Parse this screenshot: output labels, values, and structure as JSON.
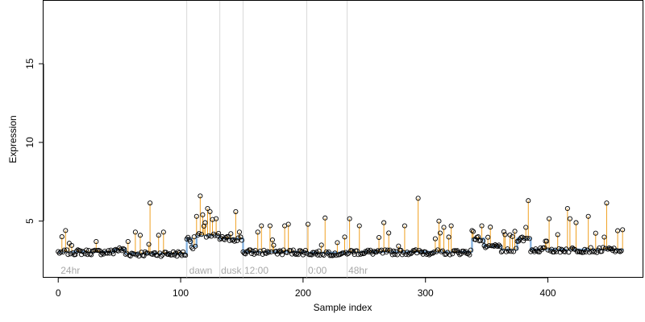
{
  "chart_data": {
    "type": "scatter",
    "title": "",
    "xlabel": "Sample index",
    "ylabel": "Expression",
    "xlim": [
      -12,
      478
    ],
    "ylim": [
      1.4,
      19
    ],
    "x_ticks": [
      0,
      100,
      200,
      300,
      400
    ],
    "y_ticks": [
      5,
      10,
      15
    ],
    "grid": false,
    "legend": "none",
    "phase_boundaries": [
      105,
      132,
      151,
      203,
      236
    ],
    "phase_labels": [
      {
        "x": 2,
        "text": "24hr"
      },
      {
        "x": 107,
        "text": "dawn"
      },
      {
        "x": 133,
        "text": "dusk"
      },
      {
        "x": 152,
        "text": "12:00"
      },
      {
        "x": 204,
        "text": "0:00"
      },
      {
        "x": 237,
        "text": "48hr"
      }
    ],
    "baseline_segments": [
      {
        "x0": 0,
        "x1": 46,
        "y": 3.05
      },
      {
        "x0": 46,
        "x1": 55,
        "y": 3.2
      },
      {
        "x0": 55,
        "x1": 105,
        "y": 2.95
      },
      {
        "x0": 105,
        "x1": 109,
        "y": 3.9
      },
      {
        "x0": 109,
        "x1": 113,
        "y": 3.4
      },
      {
        "x0": 113,
        "x1": 132,
        "y": 4.1
      },
      {
        "x0": 132,
        "x1": 151,
        "y": 3.9
      },
      {
        "x0": 151,
        "x1": 203,
        "y": 3.05
      },
      {
        "x0": 203,
        "x1": 236,
        "y": 3.0
      },
      {
        "x0": 236,
        "x1": 338,
        "y": 3.05
      },
      {
        "x0": 338,
        "x1": 348,
        "y": 3.9
      },
      {
        "x0": 348,
        "x1": 362,
        "y": 3.4
      },
      {
        "x0": 362,
        "x1": 375,
        "y": 3.2
      },
      {
        "x0": 375,
        "x1": 386,
        "y": 3.9
      },
      {
        "x0": 386,
        "x1": 462,
        "y": 3.2
      }
    ],
    "outliers": [
      {
        "x": 6,
        "y": 4.4
      },
      {
        "x": 31,
        "y": 3.7
      },
      {
        "x": 57,
        "y": 3.7
      },
      {
        "x": 63,
        "y": 4.3
      },
      {
        "x": 67,
        "y": 4.1
      },
      {
        "x": 75,
        "y": 6.15
      },
      {
        "x": 82,
        "y": 4.1
      },
      {
        "x": 86,
        "y": 4.3
      },
      {
        "x": 113,
        "y": 5.3
      },
      {
        "x": 116,
        "y": 6.6
      },
      {
        "x": 118,
        "y": 5.4
      },
      {
        "x": 120,
        "y": 4.9
      },
      {
        "x": 122,
        "y": 5.8
      },
      {
        "x": 124,
        "y": 5.6
      },
      {
        "x": 126,
        "y": 5.1
      },
      {
        "x": 141,
        "y": 4.2
      },
      {
        "x": 145,
        "y": 5.6
      },
      {
        "x": 148,
        "y": 4.3
      },
      {
        "x": 163,
        "y": 4.3
      },
      {
        "x": 166,
        "y": 4.7
      },
      {
        "x": 173,
        "y": 4.7
      },
      {
        "x": 185,
        "y": 4.7
      },
      {
        "x": 188,
        "y": 4.8
      },
      {
        "x": 204,
        "y": 4.8
      },
      {
        "x": 218,
        "y": 5.2
      },
      {
        "x": 238,
        "y": 5.15
      },
      {
        "x": 246,
        "y": 4.7
      },
      {
        "x": 266,
        "y": 4.9
      },
      {
        "x": 283,
        "y": 4.7
      },
      {
        "x": 294,
        "y": 6.45
      },
      {
        "x": 311,
        "y": 5.0
      },
      {
        "x": 315,
        "y": 4.6
      },
      {
        "x": 321,
        "y": 4.7
      },
      {
        "x": 338,
        "y": 4.4
      },
      {
        "x": 346,
        "y": 4.7
      },
      {
        "x": 373,
        "y": 4.35
      },
      {
        "x": 382,
        "y": 4.6
      },
      {
        "x": 384,
        "y": 6.3
      },
      {
        "x": 401,
        "y": 5.15
      },
      {
        "x": 416,
        "y": 5.8
      },
      {
        "x": 418,
        "y": 5.15
      },
      {
        "x": 423,
        "y": 4.9
      },
      {
        "x": 433,
        "y": 5.3
      },
      {
        "x": 448,
        "y": 6.15
      },
      {
        "x": 461,
        "y": 4.45
      }
    ],
    "n_points": 462,
    "colors": {
      "baseline": "#7faedd",
      "stem": "#f0a020",
      "point_edge": "#000000",
      "phase_line": "#d9d9d9",
      "phase_label": "#a8a8a8"
    }
  }
}
